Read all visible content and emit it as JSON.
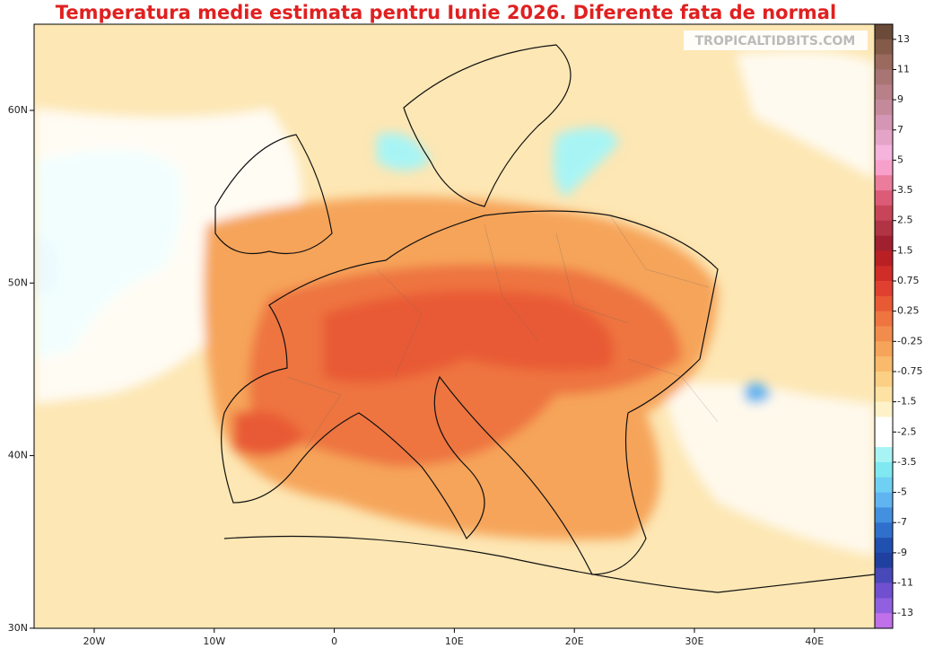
{
  "title": "Temperatura medie estimata pentru Iunie 2026. Diferente fata de normal",
  "watermark": "TROPICALTIDBITS.COM",
  "lat_labels": [
    "60N",
    "50N",
    "40N",
    "30N"
  ],
  "lon_labels": [
    "20W",
    "10W",
    "0",
    "10E",
    "20E",
    "30E",
    "40E"
  ],
  "colorbar": {
    "labels": [
      "13",
      "11",
      "9",
      "7",
      "5",
      "3.5",
      "2.5",
      "1.5",
      "0.75",
      "0.25",
      "-0.25",
      "-0.75",
      "-1.5",
      "-2.5",
      "-3.5",
      "-5",
      "-7",
      "-9",
      "-11",
      "-13"
    ],
    "colors": [
      "#6b4a3a",
      "#845a48",
      "#9a6a5e",
      "#a87474",
      "#b88088",
      "#c48a9c",
      "#d496b4",
      "#e4a4c8",
      "#f4b4dc",
      "#f8a0cc",
      "#ec7c9c",
      "#dc5c78",
      "#c84458",
      "#b03444",
      "#a02030",
      "#b82024",
      "#d02c28",
      "#e04030",
      "#e85a34",
      "#ee7440",
      "#f28c4c",
      "#f6a45a",
      "#f9ba6c",
      "#fcd084",
      "#fde2a4",
      "#fff2c8",
      "#ffffff",
      "#ffffff",
      "#a8f4f4",
      "#80e8f0",
      "#70d0f4",
      "#60b4f0",
      "#4490e0",
      "#3070cc",
      "#2050b0",
      "#2040a0",
      "#4848b8",
      "#7050d0",
      "#9060e0",
      "#c070e8"
    ]
  }
}
